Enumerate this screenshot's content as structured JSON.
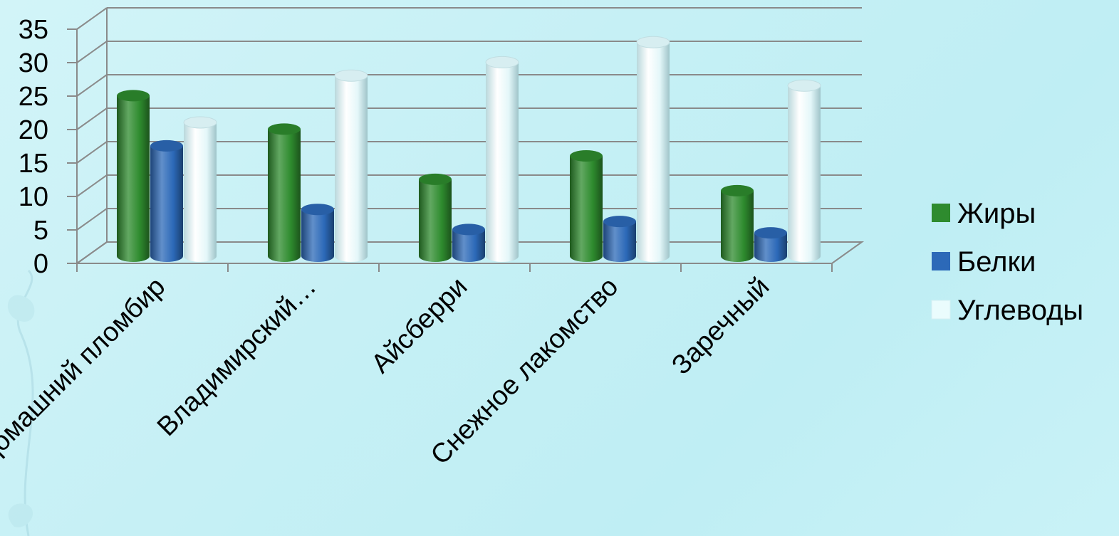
{
  "chart_data": {
    "type": "bar",
    "categories": [
      "Домашний пломбир",
      "Владимирский…",
      "Айсберри",
      "Снежное лакомство",
      "Заречный"
    ],
    "series": [
      {
        "name": "Жиры",
        "values": [
          24,
          19,
          11.5,
          15,
          9.8
        ],
        "color": "#2e8b2e"
      },
      {
        "name": "Белки",
        "values": [
          16.5,
          7,
          4,
          5.2,
          3.5
        ],
        "color": "#2c69b8"
      },
      {
        "name": "Углеводы",
        "values": [
          20,
          27,
          29,
          32,
          25.5
        ],
        "color": "#eafcfd"
      }
    ],
    "y_ticks": [
      "0",
      "5",
      "10",
      "15",
      "20",
      "25",
      "30",
      "35"
    ],
    "ylim": [
      0,
      35
    ],
    "grid": true,
    "legend_position": "right"
  },
  "colors": {
    "background": "#c6f0f5",
    "grid": "#8a8a8a"
  }
}
